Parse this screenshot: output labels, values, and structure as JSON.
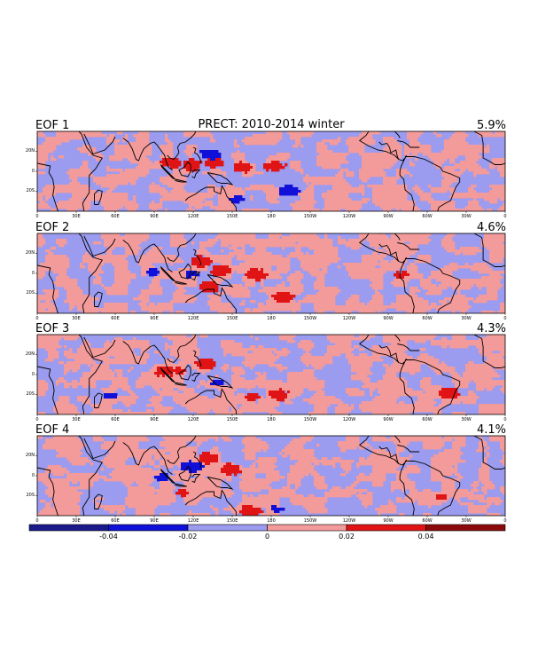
{
  "chart_data": {
    "type": "heatmap",
    "title": "PRECT: 2010-2014 winter",
    "variable": "PRECT",
    "period": "2010-2014 winter",
    "panels": [
      {
        "label": "EOF 1",
        "variance": "5.9%"
      },
      {
        "label": "EOF 2",
        "variance": "4.6%"
      },
      {
        "label": "EOF 3",
        "variance": "4.3%"
      },
      {
        "label": "EOF 4",
        "variance": "4.1%"
      }
    ],
    "lon_ticks": [
      "0",
      "30E",
      "60E",
      "90E",
      "120E",
      "150E",
      "180",
      "150W",
      "120W",
      "90W",
      "60W",
      "30W",
      "0"
    ],
    "lat_ticks": [
      "20N",
      "0",
      "20S"
    ],
    "colorbar": {
      "levels": [
        -0.06,
        -0.04,
        -0.02,
        0,
        0.02,
        0.04,
        0.06
      ],
      "tick_labels": [
        "-0.04",
        "-0.02",
        "0",
        "0.02",
        "0.04"
      ],
      "colors": [
        "#1a1a8c",
        "#1010d8",
        "#9b9bf0",
        "#f39a9a",
        "#e01414",
        "#8c0a0a"
      ]
    },
    "anomaly_centers": [
      [
        {
          "lon": 103,
          "lat": 7,
          "sign": "pos",
          "strength": 2
        },
        {
          "lon": 118,
          "lat": 6,
          "sign": "pos",
          "strength": 2
        },
        {
          "lon": 135,
          "lat": 7,
          "sign": "pos",
          "strength": 2
        },
        {
          "lon": 157,
          "lat": 4,
          "sign": "pos",
          "strength": 2
        },
        {
          "lon": 182,
          "lat": 5,
          "sign": "pos",
          "strength": 2
        },
        {
          "lon": 132,
          "lat": 14,
          "sign": "neg",
          "strength": 2
        },
        {
          "lon": 192,
          "lat": -14,
          "sign": "neg",
          "strength": 2
        },
        {
          "lon": 98,
          "lat": 9,
          "sign": "pos",
          "strength": 1
        },
        {
          "lon": 152,
          "lat": -20,
          "sign": "neg",
          "strength": 1
        }
      ],
      [
        {
          "lon": 125,
          "lat": 10,
          "sign": "pos",
          "strength": 2
        },
        {
          "lon": 140,
          "lat": 3,
          "sign": "pos",
          "strength": 2
        },
        {
          "lon": 168,
          "lat": 0,
          "sign": "pos",
          "strength": 2
        },
        {
          "lon": 188,
          "lat": -17,
          "sign": "pos",
          "strength": 2
        },
        {
          "lon": 132,
          "lat": -9,
          "sign": "pos",
          "strength": 2
        },
        {
          "lon": 88,
          "lat": 2,
          "sign": "neg",
          "strength": 1
        },
        {
          "lon": 118,
          "lat": 0,
          "sign": "neg",
          "strength": 1
        },
        {
          "lon": 279,
          "lat": 0,
          "sign": "pos",
          "strength": 1
        }
      ],
      [
        {
          "lon": 97,
          "lat": 3,
          "sign": "pos",
          "strength": 2
        },
        {
          "lon": 128,
          "lat": 9,
          "sign": "pos",
          "strength": 2
        },
        {
          "lon": 185,
          "lat": -14,
          "sign": "pos",
          "strength": 2
        },
        {
          "lon": 165,
          "lat": -16,
          "sign": "pos",
          "strength": 1
        },
        {
          "lon": 138,
          "lat": -5,
          "sign": "neg",
          "strength": 1
        },
        {
          "lon": 55,
          "lat": -15,
          "sign": "neg",
          "strength": 1
        },
        {
          "lon": 316,
          "lat": -13,
          "sign": "pos",
          "strength": 2
        },
        {
          "lon": 108,
          "lat": 4,
          "sign": "pos",
          "strength": 1
        }
      ],
      [
        {
          "lon": 130,
          "lat": 14,
          "sign": "pos",
          "strength": 2
        },
        {
          "lon": 148,
          "lat": 6,
          "sign": "pos",
          "strength": 2
        },
        {
          "lon": 118,
          "lat": 8,
          "sign": "neg",
          "strength": 2
        },
        {
          "lon": 163,
          "lat": -25,
          "sign": "pos",
          "strength": 2
        },
        {
          "lon": 183,
          "lat": -24,
          "sign": "neg",
          "strength": 1
        },
        {
          "lon": 110,
          "lat": -12,
          "sign": "pos",
          "strength": 1
        },
        {
          "lon": 310,
          "lat": -15,
          "sign": "pos",
          "strength": 1
        },
        {
          "lon": 95,
          "lat": 0,
          "sign": "neg",
          "strength": 1
        }
      ]
    ]
  }
}
